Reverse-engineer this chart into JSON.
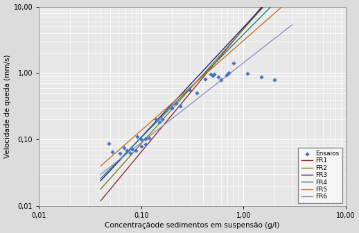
{
  "title": "",
  "xlabel": "Concentraçãode sedimentos em suspensão (g/l)",
  "ylabel": "Velocidade de queda (mm/s)",
  "xlim": [
    0.01,
    10.0
  ],
  "ylim": [
    0.01,
    10.0
  ],
  "scatter_color": "#4472C4",
  "scatter_marker": "D",
  "scatter_x": [
    0.048,
    0.052,
    0.062,
    0.068,
    0.072,
    0.078,
    0.082,
    0.088,
    0.092,
    0.1,
    0.1,
    0.11,
    0.11,
    0.12,
    0.14,
    0.15,
    0.16,
    0.2,
    0.22,
    0.24,
    0.3,
    0.35,
    0.42,
    0.48,
    0.5,
    0.52,
    0.57,
    0.6,
    0.68,
    0.72,
    0.8,
    1.1,
    1.5,
    2.0
  ],
  "scatter_y": [
    0.088,
    0.065,
    0.063,
    0.075,
    0.068,
    0.062,
    0.072,
    0.069,
    0.11,
    0.1,
    0.08,
    0.103,
    0.085,
    0.105,
    0.2,
    0.185,
    0.2,
    0.3,
    0.35,
    0.32,
    0.55,
    0.5,
    0.82,
    0.96,
    0.92,
    0.96,
    0.88,
    0.8,
    0.94,
    1.0,
    1.42,
    0.98,
    0.87,
    0.8
  ],
  "lines": [
    {
      "label": "FR1",
      "color": "#8B3030",
      "x0": 0.04,
      "x1": 3.0,
      "y0": 0.012,
      "slope": 1.85
    },
    {
      "label": "FR2",
      "color": "#808020",
      "x0": 0.04,
      "x1": 3.0,
      "y0": 0.018,
      "slope": 1.72
    },
    {
      "label": "FR3",
      "color": "#202080",
      "x0": 0.04,
      "x1": 3.0,
      "y0": 0.024,
      "slope": 1.65
    },
    {
      "label": "FR4",
      "color": "#208080",
      "x0": 0.04,
      "x1": 3.0,
      "y0": 0.026,
      "slope": 1.55
    },
    {
      "label": "FR5",
      "color": "#CC7020",
      "x0": 0.04,
      "x1": 3.0,
      "y0": 0.04,
      "slope": 1.35
    },
    {
      "label": "FR6",
      "color": "#9090C0",
      "x0": 0.04,
      "x1": 3.0,
      "y0": 0.03,
      "slope": 1.2
    }
  ],
  "legend_loc": "lower right",
  "background_color": "#DCDCDC",
  "grid_color": "#FFFFFF",
  "plot_bg": "#E8E8E8"
}
